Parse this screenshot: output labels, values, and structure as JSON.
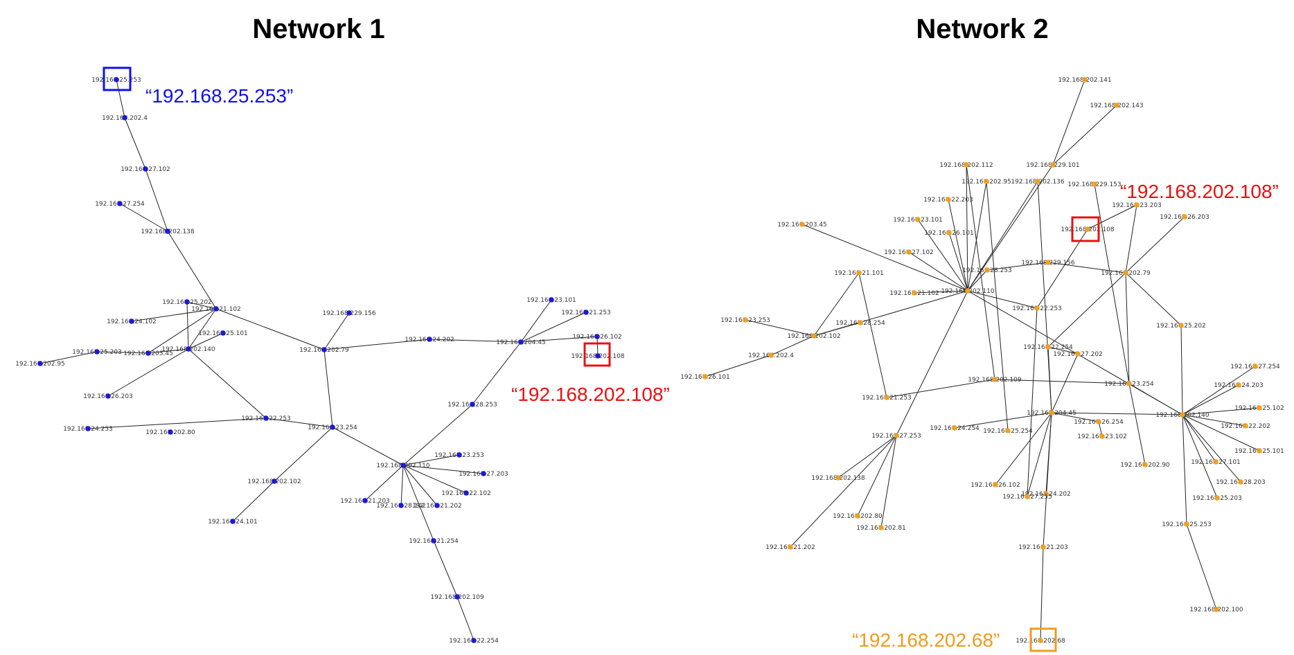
{
  "networks": [
    {
      "title": "Network 1",
      "title_color": "#1010ee",
      "node_color": "#1a1ad8",
      "nodes": [
        {
          "id": "a1",
          "label": "192.168.25.253"
        },
        {
          "id": "a2",
          "label": "192.168.202.4"
        },
        {
          "id": "a3",
          "label": "192.168.27.102"
        },
        {
          "id": "a4",
          "label": "192.168.27.254"
        },
        {
          "id": "a5",
          "label": "192.168.202.138"
        },
        {
          "id": "a6",
          "label": "192.168.21.102"
        },
        {
          "id": "a7",
          "label": "192.168.25.202"
        },
        {
          "id": "a8",
          "label": "192.168.24.102"
        },
        {
          "id": "a9",
          "label": "192.168.25.101"
        },
        {
          "id": "a10",
          "label": "192.168.202.140"
        },
        {
          "id": "a11",
          "label": "192.168.203.45"
        },
        {
          "id": "a12",
          "label": "192.168.25.203"
        },
        {
          "id": "a13",
          "label": "192.168.202.95"
        },
        {
          "id": "a14",
          "label": "192.168.26.203"
        },
        {
          "id": "a15",
          "label": "192.168.22.253"
        },
        {
          "id": "a16",
          "label": "192.168.24.253"
        },
        {
          "id": "a17",
          "label": "192.168.202.80"
        },
        {
          "id": "a18",
          "label": "192.168.202.79"
        },
        {
          "id": "a19",
          "label": "192.168.229.156"
        },
        {
          "id": "a20",
          "label": "192.168.24.202"
        },
        {
          "id": "a21",
          "label": "192.168.204.45"
        },
        {
          "id": "a22",
          "label": "192.168.23.101"
        },
        {
          "id": "a23",
          "label": "192.168.21.253"
        },
        {
          "id": "a24",
          "label": "192.168.26.102"
        },
        {
          "id": "a25",
          "label": "192.168.202.108"
        },
        {
          "id": "a26",
          "label": "192.168.28.253"
        },
        {
          "id": "a27",
          "label": "192.168.23.254"
        },
        {
          "id": "a28",
          "label": "192.168.202.102"
        },
        {
          "id": "a29",
          "label": "192.168.24.101"
        },
        {
          "id": "a30",
          "label": "192.168.202.110"
        },
        {
          "id": "a31",
          "label": "192.168.23.253"
        },
        {
          "id": "a32",
          "label": "192.168.27.203"
        },
        {
          "id": "a33",
          "label": "192.168.22.102"
        },
        {
          "id": "a34",
          "label": "192.168.21.203"
        },
        {
          "id": "a35",
          "label": "192.168.28.102"
        },
        {
          "id": "a36",
          "label": "192.168.21.202"
        },
        {
          "id": "a37",
          "label": "192.168.21.254"
        },
        {
          "id": "a38",
          "label": "192.168.202.109"
        },
        {
          "id": "a39",
          "label": "192.168.22.254"
        }
      ],
      "edges": [
        [
          "a1",
          "a2"
        ],
        [
          "a2",
          "a3"
        ],
        [
          "a3",
          "a5"
        ],
        [
          "a4",
          "a5"
        ],
        [
          "a5",
          "a6"
        ],
        [
          "a6",
          "a7"
        ],
        [
          "a6",
          "a8"
        ],
        [
          "a6",
          "a10"
        ],
        [
          "a6",
          "a11"
        ],
        [
          "a6",
          "a18"
        ],
        [
          "a9",
          "a10"
        ],
        [
          "a7",
          "a10"
        ],
        [
          "a10",
          "a11"
        ],
        [
          "a11",
          "a12"
        ],
        [
          "a12",
          "a13"
        ],
        [
          "a10",
          "a14"
        ],
        [
          "a10",
          "a15"
        ],
        [
          "a15",
          "a16"
        ],
        [
          "a15",
          "a27"
        ],
        [
          "a18",
          "a19"
        ],
        [
          "a18",
          "a20"
        ],
        [
          "a18",
          "a27"
        ],
        [
          "a20",
          "a21"
        ],
        [
          "a21",
          "a22"
        ],
        [
          "a21",
          "a23"
        ],
        [
          "a21",
          "a24"
        ],
        [
          "a24",
          "a25"
        ],
        [
          "a21",
          "a26"
        ],
        [
          "a26",
          "a30"
        ],
        [
          "a27",
          "a28"
        ],
        [
          "a28",
          "a29"
        ],
        [
          "a27",
          "a30"
        ],
        [
          "a30",
          "a31"
        ],
        [
          "a30",
          "a32"
        ],
        [
          "a30",
          "a33"
        ],
        [
          "a30",
          "a34"
        ],
        [
          "a30",
          "a35"
        ],
        [
          "a30",
          "a36"
        ],
        [
          "a30",
          "a37"
        ],
        [
          "a37",
          "a38"
        ],
        [
          "a38",
          "a39"
        ]
      ],
      "callouts": [
        {
          "node": "a1",
          "text": "“192.168.25.253”",
          "color": "#1010ee"
        },
        {
          "node": "a25",
          "text": "“192.168.202.108”",
          "color": "#e81010"
        }
      ]
    },
    {
      "title": "Network 2",
      "title_color": "#f29a1e",
      "node_color": "#f0a020",
      "nodes": [
        {
          "id": "b1",
          "label": "192.168.202.141"
        },
        {
          "id": "b2",
          "label": "192.168.202.143"
        },
        {
          "id": "b3",
          "label": "192.168.229.101"
        },
        {
          "id": "b4",
          "label": "192.168.202.112"
        },
        {
          "id": "b5",
          "label": "192.168.202.95"
        },
        {
          "id": "b6",
          "label": "192.168.202.136"
        },
        {
          "id": "b7",
          "label": "192.168.229.153"
        },
        {
          "id": "b8",
          "label": "192.168.22.203"
        },
        {
          "id": "b9",
          "label": "192.168.23.203"
        },
        {
          "id": "b10",
          "label": "192.168.26.203"
        },
        {
          "id": "b11",
          "label": "192.168.203.45"
        },
        {
          "id": "b12",
          "label": "192.168.23.101"
        },
        {
          "id": "b13",
          "label": "192.168.26.101"
        },
        {
          "id": "b14",
          "label": "192.168.202.108"
        },
        {
          "id": "b15",
          "label": "192.168.27.102"
        },
        {
          "id": "b16",
          "label": "192.168.229.156"
        },
        {
          "id": "b17",
          "label": "192.168.28.253"
        },
        {
          "id": "b18",
          "label": "192.168.202.79"
        },
        {
          "id": "b19",
          "label": "192.168.21.101"
        },
        {
          "id": "b20",
          "label": "192.168.21.102"
        },
        {
          "id": "b21",
          "label": "192.168.202.110"
        },
        {
          "id": "b22",
          "label": "192.168.22.253"
        },
        {
          "id": "b23",
          "label": "192.168.23.253"
        },
        {
          "id": "b24",
          "label": "192.168.28.254"
        },
        {
          "id": "b25",
          "label": "192.168.25.202"
        },
        {
          "id": "b26",
          "label": "192.168.202.102"
        },
        {
          "id": "b27",
          "label": "192.168.202.4"
        },
        {
          "id": "b28",
          "label": "192.168.22.254"
        },
        {
          "id": "b29",
          "label": "192.168.27.202"
        },
        {
          "id": "b30",
          "label": "192.168.27.254"
        },
        {
          "id": "b31",
          "label": "192.168.26.101"
        },
        {
          "id": "b32",
          "label": "192.168.24.203"
        },
        {
          "id": "b33",
          "label": "192.168.202.109"
        },
        {
          "id": "b34",
          "label": "192.168.23.254"
        },
        {
          "id": "b35",
          "label": "192.168.21.253"
        },
        {
          "id": "b36",
          "label": "192.168.25.102"
        },
        {
          "id": "b37",
          "label": "192.168.204.45"
        },
        {
          "id": "b38",
          "label": "192.168.202.140"
        },
        {
          "id": "b39",
          "label": "192.168.24.254"
        },
        {
          "id": "b40",
          "label": "192.168.26.254"
        },
        {
          "id": "b41",
          "label": "192.168.22.202"
        },
        {
          "id": "b42",
          "label": "192.168.25.254"
        },
        {
          "id": "b43",
          "label": "192.168.27.253"
        },
        {
          "id": "b44",
          "label": "192.168.23.102"
        },
        {
          "id": "b45",
          "label": "192.168.25.101"
        },
        {
          "id": "b46",
          "label": "192.168.27.101"
        },
        {
          "id": "b47",
          "label": "192.168.202.90"
        },
        {
          "id": "b48",
          "label": "192.168.202.138"
        },
        {
          "id": "b49",
          "label": "192.168.28.203"
        },
        {
          "id": "b50",
          "label": "192.168.26.102"
        },
        {
          "id": "b51",
          "label": "192.168.24.202"
        },
        {
          "id": "b52",
          "label": "192.168.27.255"
        },
        {
          "id": "b53",
          "label": "192.168.25.203"
        },
        {
          "id": "b54",
          "label": "192.168.202.80"
        },
        {
          "id": "b55",
          "label": "192.168.25.253"
        },
        {
          "id": "b56",
          "label": "192.168.202.81"
        },
        {
          "id": "b57",
          "label": "192.168.21.202"
        },
        {
          "id": "b58",
          "label": "192.168.21.203"
        },
        {
          "id": "b59",
          "label": "192.168.202.100"
        },
        {
          "id": "b60",
          "label": "192.168.202.68"
        }
      ],
      "edges": [
        [
          "b1",
          "b3"
        ],
        [
          "b2",
          "b3"
        ],
        [
          "b3",
          "b21"
        ],
        [
          "b4",
          "b21"
        ],
        [
          "b5",
          "b21"
        ],
        [
          "b6",
          "b21"
        ],
        [
          "b8",
          "b21"
        ],
        [
          "b12",
          "b21"
        ],
        [
          "b13",
          "b21"
        ],
        [
          "b15",
          "b21"
        ],
        [
          "b20",
          "b21"
        ],
        [
          "b11",
          "b21"
        ],
        [
          "b17",
          "b21"
        ],
        [
          "b21",
          "b38"
        ],
        [
          "b21",
          "b26"
        ],
        [
          "b21",
          "b43"
        ],
        [
          "b21",
          "b22"
        ],
        [
          "b5",
          "b42"
        ],
        [
          "b4",
          "b33"
        ],
        [
          "b6",
          "b37"
        ],
        [
          "b7",
          "b34"
        ],
        [
          "b9",
          "b14"
        ],
        [
          "b14",
          "b22"
        ],
        [
          "b10",
          "b18"
        ],
        [
          "b16",
          "b18"
        ],
        [
          "b17",
          "b16"
        ],
        [
          "b18",
          "b25"
        ],
        [
          "b18",
          "b34"
        ],
        [
          "b18",
          "b28"
        ],
        [
          "b18",
          "b9"
        ],
        [
          "b19",
          "b26"
        ],
        [
          "b19",
          "b35"
        ],
        [
          "b24",
          "b26"
        ],
        [
          "b23",
          "b26"
        ],
        [
          "b26",
          "b27"
        ],
        [
          "b27",
          "b31"
        ],
        [
          "b22",
          "b52"
        ],
        [
          "b28",
          "b29"
        ],
        [
          "b28",
          "b37"
        ],
        [
          "b29",
          "b37"
        ],
        [
          "b34",
          "b38"
        ],
        [
          "b34",
          "b47"
        ],
        [
          "b33",
          "b35"
        ],
        [
          "b33",
          "b34"
        ],
        [
          "b37",
          "b39"
        ],
        [
          "b37",
          "b40"
        ],
        [
          "b37",
          "b38"
        ],
        [
          "b37",
          "b50"
        ],
        [
          "b37",
          "b51"
        ],
        [
          "b37",
          "b52"
        ],
        [
          "b37",
          "b58"
        ],
        [
          "b40",
          "b44"
        ],
        [
          "b38",
          "b30"
        ],
        [
          "b38",
          "b32"
        ],
        [
          "b38",
          "b36"
        ],
        [
          "b38",
          "b41"
        ],
        [
          "b38",
          "b45"
        ],
        [
          "b38",
          "b46"
        ],
        [
          "b38",
          "b49"
        ],
        [
          "b38",
          "b53"
        ],
        [
          "b38",
          "b55"
        ],
        [
          "b38",
          "b25"
        ],
        [
          "b55",
          "b59"
        ],
        [
          "b43",
          "b48"
        ],
        [
          "b43",
          "b54"
        ],
        [
          "b43",
          "b56"
        ],
        [
          "b43",
          "b57"
        ],
        [
          "b58",
          "b60"
        ]
      ],
      "callouts": [
        {
          "node": "b14",
          "text": "“192.168.202.108”",
          "color": "#e81010"
        },
        {
          "node": "b60",
          "text": "“192.168.202.68”",
          "color": "#f29a1e"
        }
      ]
    }
  ]
}
